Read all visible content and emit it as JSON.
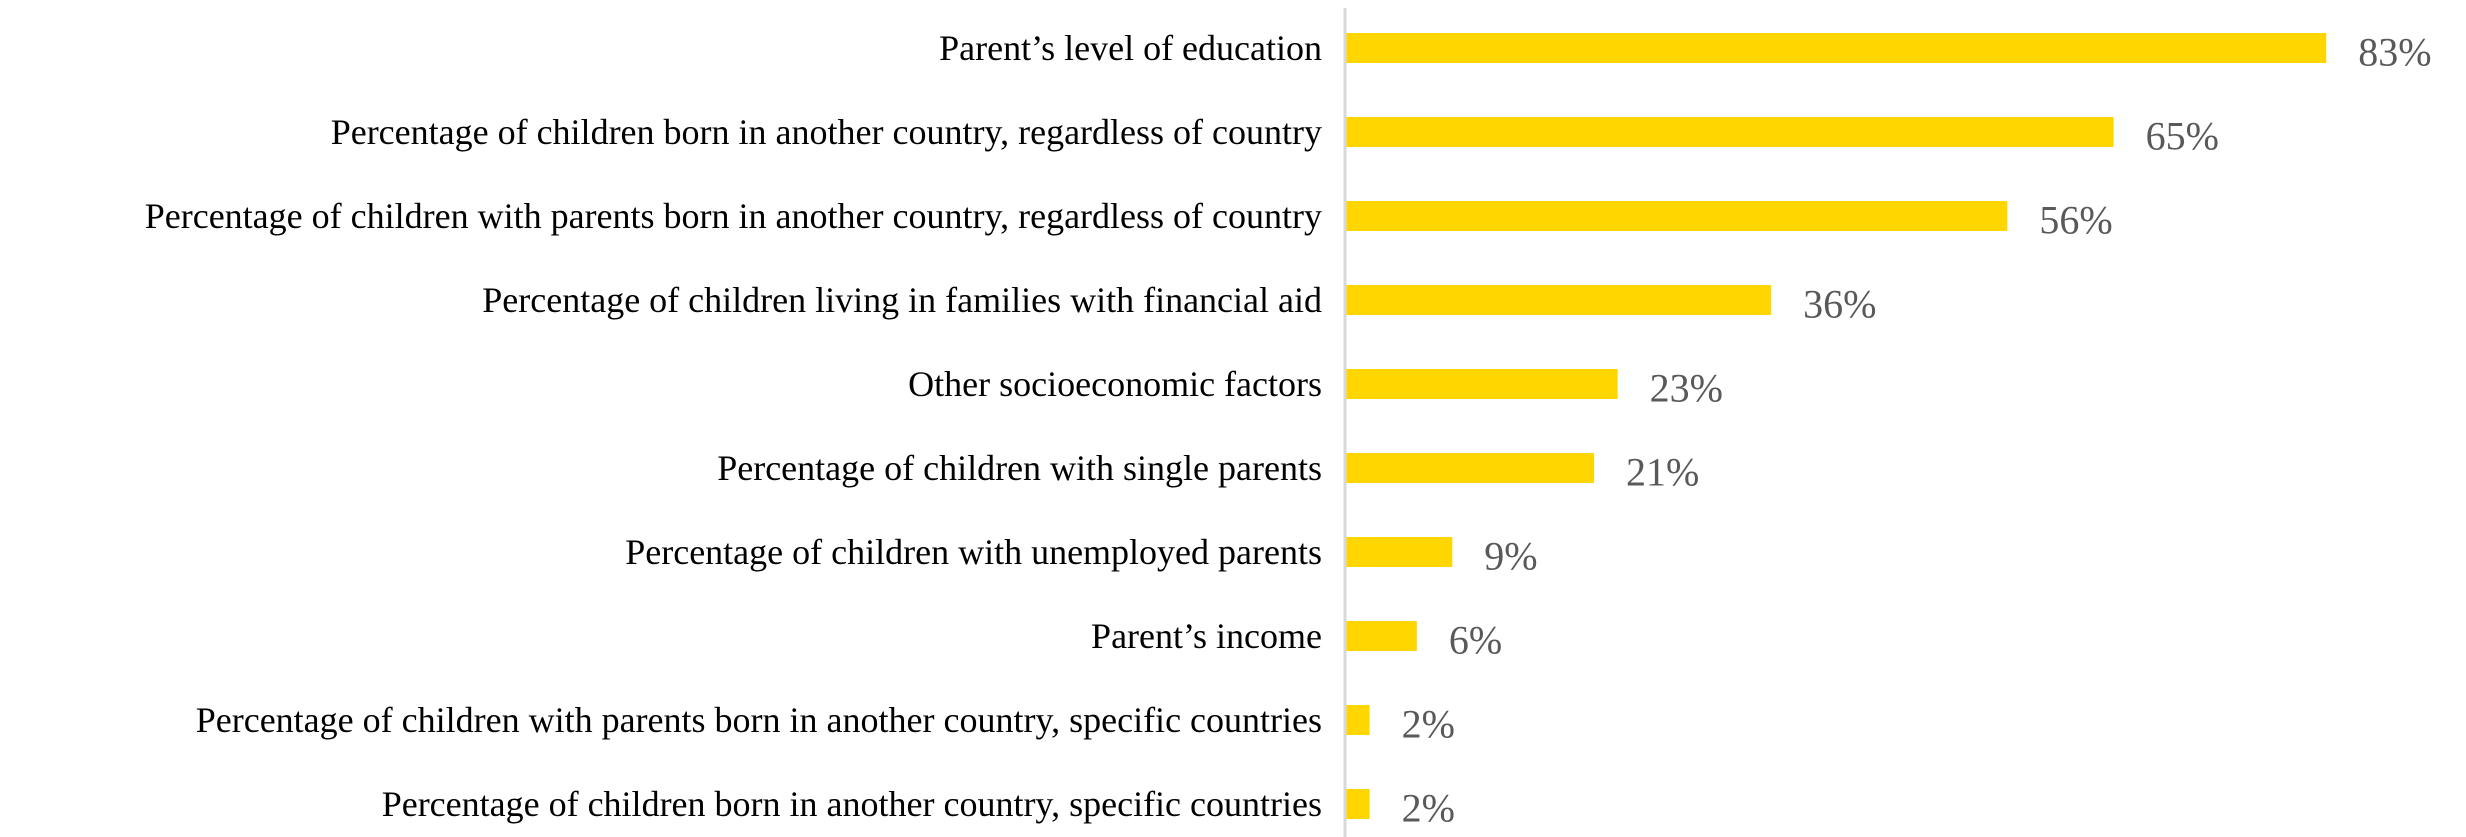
{
  "chart_data": {
    "type": "bar",
    "orientation": "horizontal",
    "categories": [
      "Parent’s level of education",
      "Percentage of children born in another country, regardless of country",
      "Percentage of children with parents born in another country, regardless of country",
      "Percentage of children living in families with financial aid",
      "Other socioeconomic factors",
      "Percentage of children with single parents",
      "Percentage of children with unemployed parents",
      "Parent’s income",
      "Percentage of children with parents born in another country, specific countries",
      "Percentage of children born in another country, specific countries"
    ],
    "values": [
      83,
      65,
      56,
      36,
      23,
      21,
      9,
      6,
      2,
      2
    ],
    "value_labels": [
      "83%",
      "65%",
      "56%",
      "36%",
      "23%",
      "21%",
      "9%",
      "6%",
      "2%",
      "2%"
    ],
    "unit": "%",
    "xlim": [
      0,
      100
    ],
    "title": "",
    "xlabel": "",
    "ylabel": "",
    "grid": false,
    "legend": "none",
    "colors": {
      "bar": "#FFD600",
      "axis": "#D9D9D9",
      "category_text": "#000000",
      "value_text": "#595959",
      "background": "#FFFFFF"
    }
  }
}
